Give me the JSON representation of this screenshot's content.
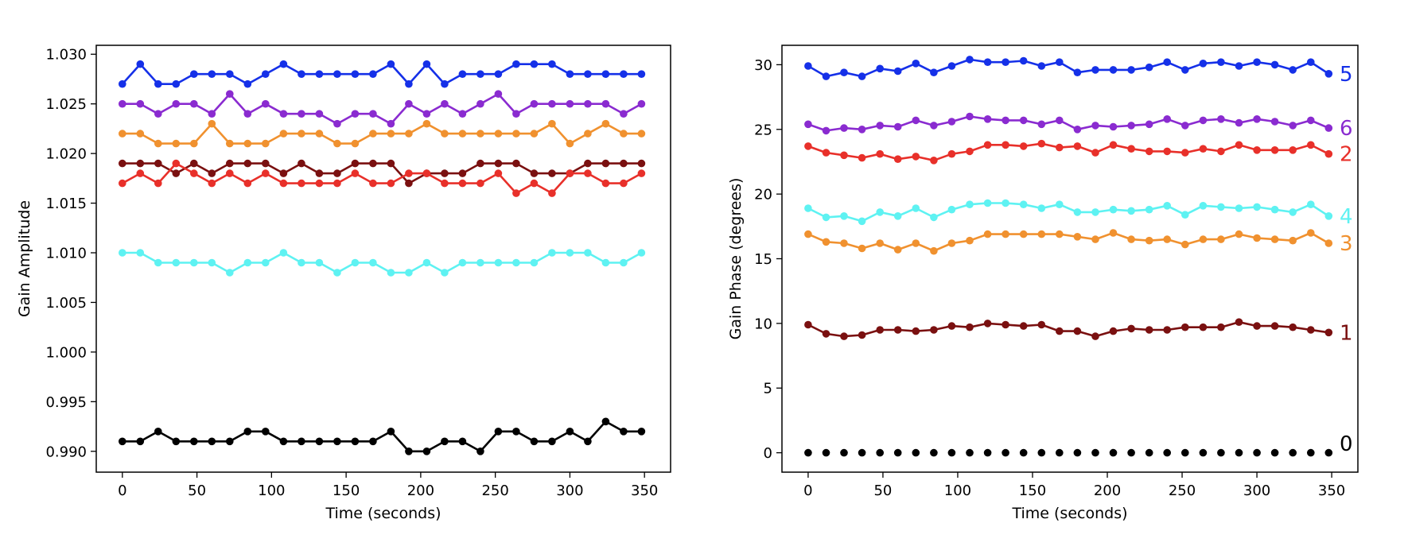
{
  "chart_data": [
    {
      "id": "amplitude",
      "type": "line",
      "title": "",
      "xlabel": "Time (seconds)",
      "ylabel": "Gain Amplitude",
      "xlim": [
        -17.5,
        367.5
      ],
      "ylim": [
        0.9879,
        1.0309
      ],
      "xticks": [
        0,
        50,
        100,
        150,
        200,
        250,
        300,
        350
      ],
      "xtick_labels": [
        "0",
        "50",
        "100",
        "150",
        "200",
        "250",
        "300",
        "350"
      ],
      "yticks": [
        0.99,
        0.995,
        1.0,
        1.005,
        1.01,
        1.015,
        1.02,
        1.025,
        1.03
      ],
      "ytick_labels": [
        "0.990",
        "0.995",
        "1.000",
        "1.005",
        "1.010",
        "1.015",
        "1.020",
        "1.025",
        "1.030"
      ],
      "grid": false,
      "x": [
        0,
        12,
        24,
        36,
        48,
        60,
        72,
        84,
        96,
        108,
        120,
        132,
        144,
        156,
        168,
        180,
        192,
        204,
        216,
        228,
        240,
        252,
        264,
        276,
        288,
        300,
        312,
        324,
        336,
        348
      ],
      "series": [
        {
          "name": "0",
          "color": "#000000",
          "values": [
            0.991,
            0.991,
            0.992,
            0.991,
            0.991,
            0.991,
            0.991,
            0.992,
            0.992,
            0.991,
            0.991,
            0.991,
            0.991,
            0.991,
            0.991,
            0.992,
            0.99,
            0.99,
            0.991,
            0.991,
            0.99,
            0.992,
            0.992,
            0.991,
            0.991,
            0.992,
            0.991,
            0.993,
            0.992,
            0.992
          ]
        },
        {
          "name": "1",
          "color": "#7a1010",
          "values": [
            1.019,
            1.019,
            1.019,
            1.018,
            1.019,
            1.018,
            1.019,
            1.019,
            1.019,
            1.018,
            1.019,
            1.018,
            1.018,
            1.019,
            1.019,
            1.019,
            1.017,
            1.018,
            1.018,
            1.018,
            1.019,
            1.019,
            1.019,
            1.018,
            1.018,
            1.018,
            1.019,
            1.019,
            1.019,
            1.019
          ]
        },
        {
          "name": "2",
          "color": "#e8302a",
          "values": [
            1.017,
            1.018,
            1.017,
            1.019,
            1.018,
            1.017,
            1.018,
            1.017,
            1.018,
            1.017,
            1.017,
            1.017,
            1.017,
            1.018,
            1.017,
            1.017,
            1.018,
            1.018,
            1.017,
            1.017,
            1.017,
            1.018,
            1.016,
            1.017,
            1.016,
            1.018,
            1.018,
            1.017,
            1.017,
            1.018
          ]
        },
        {
          "name": "3",
          "color": "#f0912f",
          "values": [
            1.022,
            1.022,
            1.021,
            1.021,
            1.021,
            1.023,
            1.021,
            1.021,
            1.021,
            1.022,
            1.022,
            1.022,
            1.021,
            1.021,
            1.022,
            1.022,
            1.022,
            1.023,
            1.022,
            1.022,
            1.022,
            1.022,
            1.022,
            1.022,
            1.023,
            1.021,
            1.022,
            1.023,
            1.022,
            1.022
          ]
        },
        {
          "name": "4",
          "color": "#5ef2f2",
          "values": [
            1.01,
            1.01,
            1.009,
            1.009,
            1.009,
            1.009,
            1.008,
            1.009,
            1.009,
            1.01,
            1.009,
            1.009,
            1.008,
            1.009,
            1.009,
            1.008,
            1.008,
            1.009,
            1.008,
            1.009,
            1.009,
            1.009,
            1.009,
            1.009,
            1.01,
            1.01,
            1.01,
            1.009,
            1.009,
            1.01
          ]
        },
        {
          "name": "5",
          "color": "#1530e8",
          "values": [
            1.027,
            1.029,
            1.027,
            1.027,
            1.028,
            1.028,
            1.028,
            1.027,
            1.028,
            1.029,
            1.028,
            1.028,
            1.028,
            1.028,
            1.028,
            1.029,
            1.027,
            1.029,
            1.027,
            1.028,
            1.028,
            1.028,
            1.029,
            1.029,
            1.029,
            1.028,
            1.028,
            1.028,
            1.028,
            1.028
          ]
        },
        {
          "name": "6",
          "color": "#8a2bd0",
          "values": [
            1.025,
            1.025,
            1.024,
            1.025,
            1.025,
            1.024,
            1.026,
            1.024,
            1.025,
            1.024,
            1.024,
            1.024,
            1.023,
            1.024,
            1.024,
            1.023,
            1.025,
            1.024,
            1.025,
            1.024,
            1.025,
            1.026,
            1.024,
            1.025,
            1.025,
            1.025,
            1.025,
            1.025,
            1.024,
            1.025
          ]
        }
      ]
    },
    {
      "id": "phase",
      "type": "line",
      "title": "",
      "xlabel": "Time (seconds)",
      "ylabel": "Gain Phase (degrees)",
      "xlim": [
        -17.5,
        367.5
      ],
      "ylim": [
        -1.5,
        31.5
      ],
      "xticks": [
        0,
        50,
        100,
        150,
        200,
        250,
        300,
        350
      ],
      "xtick_labels": [
        "0",
        "50",
        "100",
        "150",
        "200",
        "250",
        "300",
        "350"
      ],
      "yticks": [
        0,
        5,
        10,
        15,
        20,
        25,
        30
      ],
      "ytick_labels": [
        "0",
        "5",
        "10",
        "15",
        "20",
        "25",
        "30"
      ],
      "grid": false,
      "x": [
        0,
        12,
        24,
        36,
        48,
        60,
        72,
        84,
        96,
        108,
        120,
        132,
        144,
        156,
        168,
        180,
        192,
        204,
        216,
        228,
        240,
        252,
        264,
        276,
        288,
        300,
        312,
        324,
        336,
        348
      ],
      "series": [
        {
          "name": "0",
          "color": "#000000",
          "markers_only": true,
          "values": [
            0,
            0,
            0,
            0,
            0,
            0,
            0,
            0,
            0,
            0,
            0,
            0,
            0,
            0,
            0,
            0,
            0,
            0,
            0,
            0,
            0,
            0,
            0,
            0,
            0,
            0,
            0,
            0,
            0,
            0
          ]
        },
        {
          "name": "1",
          "color": "#7a1010",
          "values": [
            9.9,
            9.2,
            9.0,
            9.1,
            9.5,
            9.5,
            9.4,
            9.5,
            9.8,
            9.7,
            10.0,
            9.9,
            9.8,
            9.9,
            9.4,
            9.4,
            9.0,
            9.4,
            9.6,
            9.5,
            9.5,
            9.7,
            9.7,
            9.7,
            10.1,
            9.8,
            9.8,
            9.7,
            9.5,
            9.3
          ]
        },
        {
          "name": "2",
          "color": "#e8302a",
          "values": [
            23.7,
            23.2,
            23.0,
            22.8,
            23.1,
            22.7,
            22.9,
            22.6,
            23.1,
            23.3,
            23.8,
            23.8,
            23.7,
            23.9,
            23.6,
            23.7,
            23.2,
            23.8,
            23.5,
            23.3,
            23.3,
            23.2,
            23.5,
            23.3,
            23.8,
            23.4,
            23.4,
            23.4,
            23.8,
            23.1
          ]
        },
        {
          "name": "3",
          "color": "#f0912f",
          "values": [
            16.9,
            16.3,
            16.2,
            15.8,
            16.2,
            15.7,
            16.2,
            15.6,
            16.2,
            16.4,
            16.9,
            16.9,
            16.9,
            16.9,
            16.9,
            16.7,
            16.5,
            17.0,
            16.5,
            16.4,
            16.5,
            16.1,
            16.5,
            16.5,
            16.9,
            16.6,
            16.5,
            16.4,
            17.0,
            16.2
          ]
        },
        {
          "name": "4",
          "color": "#5ef2f2",
          "values": [
            18.9,
            18.2,
            18.3,
            17.9,
            18.6,
            18.3,
            18.9,
            18.2,
            18.8,
            19.2,
            19.3,
            19.3,
            19.2,
            18.9,
            19.2,
            18.6,
            18.6,
            18.8,
            18.7,
            18.8,
            19.1,
            18.4,
            19.1,
            19.0,
            18.9,
            19.0,
            18.8,
            18.6,
            19.2,
            18.3
          ]
        },
        {
          "name": "5",
          "color": "#1530e8",
          "values": [
            29.9,
            29.1,
            29.4,
            29.1,
            29.7,
            29.5,
            30.1,
            29.4,
            29.9,
            30.4,
            30.2,
            30.2,
            30.3,
            29.9,
            30.2,
            29.4,
            29.6,
            29.6,
            29.6,
            29.8,
            30.2,
            29.6,
            30.1,
            30.2,
            29.9,
            30.2,
            30.0,
            29.6,
            30.2,
            29.3
          ]
        },
        {
          "name": "6",
          "color": "#8a2bd0",
          "values": [
            25.4,
            24.9,
            25.1,
            25.0,
            25.3,
            25.2,
            25.7,
            25.3,
            25.6,
            26.0,
            25.8,
            25.7,
            25.7,
            25.4,
            25.7,
            25.0,
            25.3,
            25.2,
            25.3,
            25.4,
            25.8,
            25.3,
            25.7,
            25.8,
            25.5,
            25.8,
            25.6,
            25.3,
            25.7,
            25.1
          ]
        }
      ],
      "labels": [
        {
          "text": "5",
          "color": "#1530e8",
          "y": 29.3
        },
        {
          "text": "6",
          "color": "#8a2bd0",
          "y": 25.1
        },
        {
          "text": "2",
          "color": "#e8302a",
          "y": 23.1
        },
        {
          "text": "4",
          "color": "#5ef2f2",
          "y": 18.3
        },
        {
          "text": "3",
          "color": "#f0912f",
          "y": 16.2
        },
        {
          "text": "1",
          "color": "#7a1010",
          "y": 9.3
        },
        {
          "text": "0",
          "color": "#000000",
          "y": 0.7
        }
      ]
    }
  ]
}
